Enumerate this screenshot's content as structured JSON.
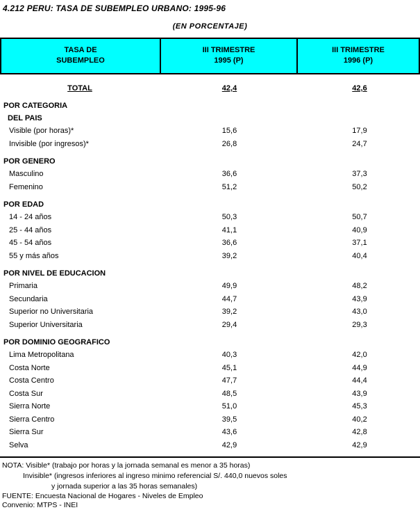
{
  "page": {
    "title": "4.212  PERU: TASA DE SUBEMPLEO URBANO: 1995-96",
    "subtitle": "(EN  PORCENTAJE)"
  },
  "colors": {
    "header_bg": "#00FFFF",
    "border": "#000000",
    "text": "#000000"
  },
  "table": {
    "header": {
      "col1": [
        "TASA DE",
        "SUBEMPLEO"
      ],
      "col2": [
        "III TRIMESTRE",
        "1995 (P)"
      ],
      "col3": [
        "III TRIMESTRE",
        "1996 (P)"
      ]
    },
    "total": {
      "label": "TOTAL",
      "v1995": "42,4",
      "v1996": "42,6"
    },
    "sections": [
      {
        "titles": [
          "POR CATEGORIA",
          "DEL PAIS"
        ],
        "rows": [
          {
            "label": "Visible (por horas)*",
            "v1995": "15,6",
            "v1996": "17,9"
          },
          {
            "label": "Invisible (por ingresos)*",
            "v1995": "26,8",
            "v1996": "24,7"
          }
        ]
      },
      {
        "titles": [
          "POR GENERO"
        ],
        "rows": [
          {
            "label": "Masculino",
            "v1995": "36,6",
            "v1996": "37,3"
          },
          {
            "label": "Femenino",
            "v1995": "51,2",
            "v1996": "50,2"
          }
        ]
      },
      {
        "titles": [
          "POR EDAD"
        ],
        "rows": [
          {
            "label": "14 - 24 años",
            "v1995": "50,3",
            "v1996": "50,7"
          },
          {
            "label": "25 - 44 años",
            "v1995": "41,1",
            "v1996": "40,9"
          },
          {
            "label": "45 - 54 años",
            "v1995": "36,6",
            "v1996": "37,1"
          },
          {
            "label": "55 y más años",
            "v1995": "39,2",
            "v1996": "40,4"
          }
        ]
      },
      {
        "titles": [
          "POR NIVEL DE EDUCACION"
        ],
        "rows": [
          {
            "label": "Primaria",
            "v1995": "49,9",
            "v1996": "48,2"
          },
          {
            "label": "Secundaria",
            "v1995": "44,7",
            "v1996": "43,9"
          },
          {
            "label": "Superior no Universitaria",
            "v1995": "39,2",
            "v1996": "43,0"
          },
          {
            "label": "Superior Universitaria",
            "v1995": "29,4",
            "v1996": "29,3"
          }
        ]
      },
      {
        "titles": [
          "POR DOMINIO GEOGRAFICO"
        ],
        "rows": [
          {
            "label": "Lima Metropolitana",
            "v1995": "40,3",
            "v1996": "42,0"
          },
          {
            "label": "Costa Norte",
            "v1995": "45,1",
            "v1996": "44,9"
          },
          {
            "label": "Costa Centro",
            "v1995": "47,7",
            "v1996": "44,4"
          },
          {
            "label": "Costa Sur",
            "v1995": "48,5",
            "v1996": "43,9"
          },
          {
            "label": "Sierra Norte",
            "v1995": "51,0",
            "v1996": "45,3"
          },
          {
            "label": "Sierra Centro",
            "v1995": "39,5",
            "v1996": "40,2"
          },
          {
            "label": "Sierra Sur",
            "v1995": "43,6",
            "v1996": "42,8"
          },
          {
            "label": "Selva",
            "v1995": "42,9",
            "v1996": "42,9"
          }
        ]
      }
    ]
  },
  "footer": {
    "nota_line1": "NOTA: Visible* (trabajo por horas y la jornada semanal es menor a 35 horas)",
    "nota_line2": "Invisible* (ingresos inferiores al ingreso minimo referencial S/. 440,0 nuevos soles",
    "nota_line3": "y jornada superior a las 35 horas semanales)",
    "fuente": "FUENTE: Encuesta Nacional de Hogares - Niveles de Empleo",
    "convenio": "Convenio: MTPS - INEI"
  }
}
